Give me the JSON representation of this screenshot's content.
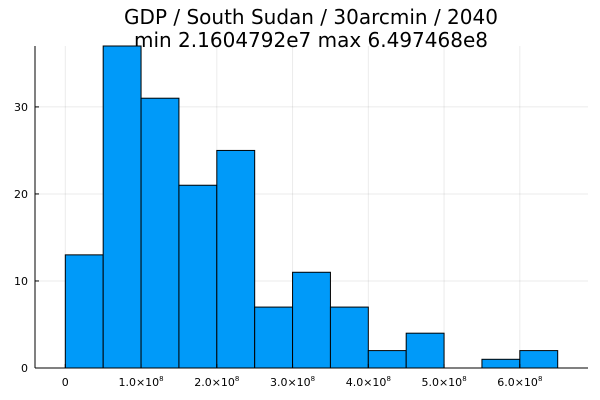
{
  "chart_data": {
    "type": "bar",
    "subtype": "histogram",
    "title": "GDP / South Sudan / 30arcmin / 2040",
    "subtitle": "min 2.1604792e7  max 6.497468e8",
    "xlabel": "",
    "ylabel": "",
    "bin_edges": [
      0,
      50000000,
      100000000,
      150000000,
      200000000,
      250000000,
      300000000,
      350000000,
      400000000,
      450000000,
      500000000,
      550000000,
      600000000,
      650000000
    ],
    "values": [
      13,
      37,
      31,
      21,
      25,
      7,
      11,
      7,
      2,
      4,
      0,
      1,
      2
    ],
    "xlim": [
      -40000000,
      690000000
    ],
    "ylim": [
      0,
      37
    ],
    "x_ticks": [
      {
        "value": 0,
        "mantissa": "0",
        "exponent": ""
      },
      {
        "value": 100000000,
        "mantissa": "1.0×10",
        "exponent": "8"
      },
      {
        "value": 200000000,
        "mantissa": "2.0×10",
        "exponent": "8"
      },
      {
        "value": 300000000,
        "mantissa": "3.0×10",
        "exponent": "8"
      },
      {
        "value": 400000000,
        "mantissa": "4.0×10",
        "exponent": "8"
      },
      {
        "value": 500000000,
        "mantissa": "5.0×10",
        "exponent": "8"
      },
      {
        "value": 600000000,
        "mantissa": "6.0×10",
        "exponent": "8"
      }
    ],
    "y_ticks": [
      0,
      10,
      20,
      30
    ],
    "grid": true,
    "legend": "none",
    "bar_color": "#009af9",
    "bar_edge_color": "#000000"
  }
}
